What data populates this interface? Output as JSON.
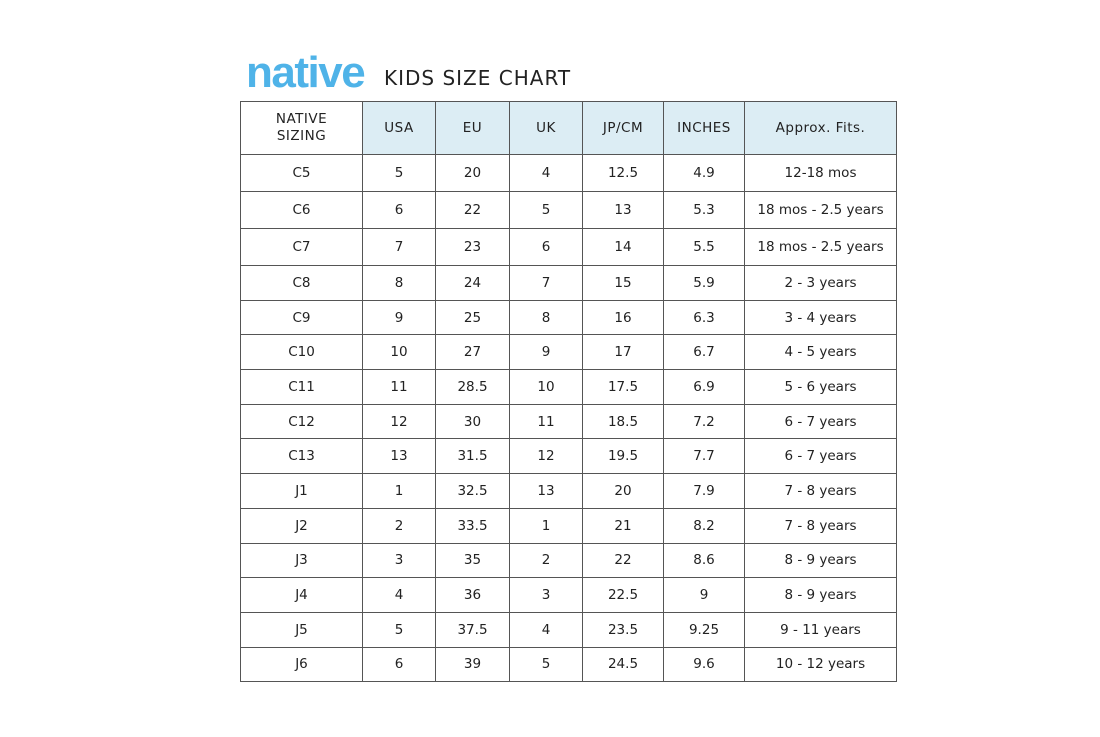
{
  "logo": "native",
  "title": "KIDS SIZE CHART",
  "headers": [
    "NATIVE SIZING",
    "USA",
    "EU",
    "UK",
    "JP/CM",
    "INCHES",
    "Approx. Fits."
  ],
  "rows": [
    [
      "C5",
      "5",
      "20",
      "4",
      "12.5",
      "4.9",
      "12-18 mos"
    ],
    [
      "C6",
      "6",
      "22",
      "5",
      "13",
      "5.3",
      "18 mos - 2.5 years"
    ],
    [
      "C7",
      "7",
      "23",
      "6",
      "14",
      "5.5",
      "18 mos - 2.5 years"
    ],
    [
      "C8",
      "8",
      "24",
      "7",
      "15",
      "5.9",
      "2 - 3 years"
    ],
    [
      "C9",
      "9",
      "25",
      "8",
      "16",
      "6.3",
      "3 - 4 years"
    ],
    [
      "C10",
      "10",
      "27",
      "9",
      "17",
      "6.7",
      "4 - 5 years"
    ],
    [
      "C11",
      "11",
      "28.5",
      "10",
      "17.5",
      "6.9",
      "5 - 6 years"
    ],
    [
      "C12",
      "12",
      "30",
      "11",
      "18.5",
      "7.2",
      "6 - 7 years"
    ],
    [
      "C13",
      "13",
      "31.5",
      "12",
      "19.5",
      "7.7",
      "6 - 7 years"
    ],
    [
      "J1",
      "1",
      "32.5",
      "13",
      "20",
      "7.9",
      "7 - 8 years"
    ],
    [
      "J2",
      "2",
      "33.5",
      "1",
      "21",
      "8.2",
      "7 - 8 years"
    ],
    [
      "J3",
      "3",
      "35",
      "2",
      "22",
      "8.6",
      "8 - 9 years"
    ],
    [
      "J4",
      "4",
      "36",
      "3",
      "22.5",
      "9",
      "8 - 9 years"
    ],
    [
      "J5",
      "5",
      "37.5",
      "4",
      "23.5",
      "9.25",
      "9 - 11 years"
    ],
    [
      "J6",
      "6",
      "39",
      "5",
      "24.5",
      "9.6",
      "10 - 12 years"
    ]
  ],
  "colors": {
    "brand": "#4fb3e8",
    "header_bg": "#dcedf4"
  }
}
